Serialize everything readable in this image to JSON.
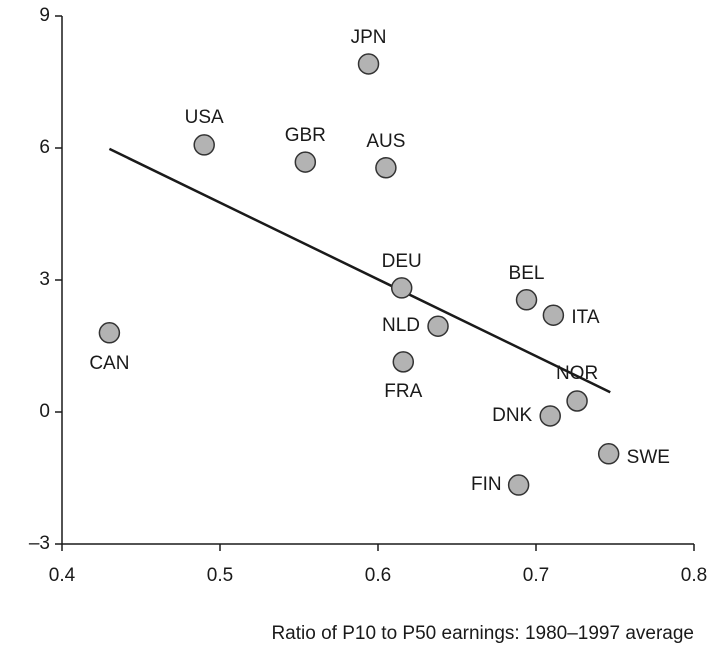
{
  "chart_data": {
    "type": "scatter",
    "x_label": "Ratio of P10 to P50 earnings: 1980–1997 average",
    "series": [
      {
        "name": null,
        "color": "#b3b3b3",
        "labels": [
          "JPN",
          "USA",
          "GBR",
          "AUS",
          "DEU",
          "BEL",
          "ITA",
          "NLD",
          "CAN",
          "FRA",
          "NOR",
          "DNK",
          "SWE",
          "FIN"
        ],
        "x": [
          0.594,
          0.49,
          0.554,
          0.605,
          0.615,
          0.694,
          0.711,
          0.638,
          0.43,
          0.616,
          0.726,
          0.709,
          0.746,
          0.689
        ],
        "values": [
          7.91,
          6.07,
          5.68,
          5.55,
          2.82,
          2.55,
          2.2,
          1.95,
          1.8,
          1.14,
          0.25,
          -0.09,
          -0.95,
          -1.66
        ]
      }
    ],
    "trend_line": {
      "x": [
        0.43,
        0.747
      ],
      "y": [
        5.98,
        0.45
      ]
    },
    "xlim": [
      0.4,
      0.8
    ],
    "xticks": [
      0.4,
      0.5,
      0.6,
      0.7,
      0.8
    ],
    "ylim": [
      -3,
      9
    ],
    "yticks": [
      {
        "value": -3,
        "label": "–3"
      },
      0,
      3,
      6,
      9
    ]
  }
}
